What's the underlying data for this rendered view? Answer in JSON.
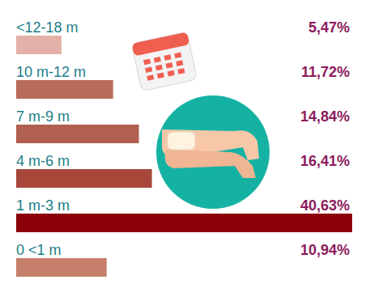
{
  "chart_data": {
    "type": "bar",
    "orientation": "horizontal",
    "categories": [
      "<12-18 m",
      "10 m-12 m",
      "7 m-9 m",
      "4 m-6 m",
      "1 m-3 m",
      "0 <1 m"
    ],
    "values": [
      5.47,
      11.72,
      14.84,
      16.41,
      40.63,
      10.94
    ],
    "value_labels": [
      "5,47%",
      "11,72%",
      "14,84%",
      "16,41%",
      "40,63%",
      "10,94%"
    ],
    "colors": [
      "#e3b1a9",
      "#b86b59",
      "#b1604f",
      "#a6473a",
      "#8b0009",
      "#c67f6b"
    ],
    "data_labels": true,
    "tick_labels": "y",
    "grid": false
  }
}
